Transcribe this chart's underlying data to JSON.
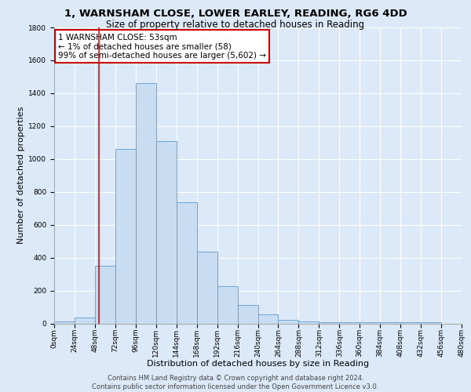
{
  "title_line1": "1, WARNSHAM CLOSE, LOWER EARLEY, READING, RG6 4DD",
  "title_line2": "Size of property relative to detached houses in Reading",
  "xlabel": "Distribution of detached houses by size in Reading",
  "ylabel": "Number of detached properties",
  "bin_edges": [
    0,
    24,
    48,
    72,
    96,
    120,
    144,
    168,
    192,
    216,
    240,
    264,
    288,
    312,
    336,
    360,
    384,
    408,
    432,
    456,
    480
  ],
  "bar_heights": [
    10,
    35,
    350,
    1060,
    1460,
    1110,
    735,
    435,
    225,
    110,
    55,
    20,
    10,
    5,
    5,
    5,
    5,
    5,
    5,
    0
  ],
  "bar_color": "#c8ddf2",
  "bar_edge_color": "#5b9bd5",
  "vline_x": 53,
  "vline_color": "#cc0000",
  "annotation_text": "1 WARNSHAM CLOSE: 53sqm\n← 1% of detached houses are smaller (58)\n99% of semi-detached houses are larger (5,602) →",
  "annotation_box_color": "#ffffff",
  "annotation_box_edge": "#cc0000",
  "ylim": [
    0,
    1800
  ],
  "yticks": [
    0,
    200,
    400,
    600,
    800,
    1000,
    1200,
    1400,
    1600,
    1800
  ],
  "footer_line1": "Contains HM Land Registry data © Crown copyright and database right 2024.",
  "footer_line2": "Contains public sector information licensed under the Open Government Licence v3.0.",
  "bg_color": "#dce9f8",
  "plot_bg_color": "#dce9f8",
  "grid_color": "#ffffff",
  "title1_fontsize": 9.5,
  "title2_fontsize": 8.5,
  "axis_label_fontsize": 8,
  "tick_fontsize": 6.5,
  "annotation_fontsize": 7.5,
  "footer_fontsize": 6.0
}
